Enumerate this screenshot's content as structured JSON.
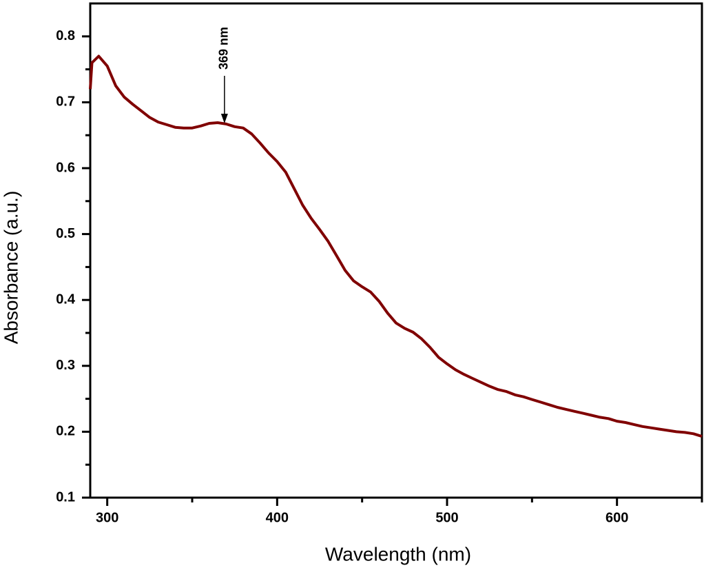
{
  "chart_data": {
    "type": "line",
    "x_label": "Wavelength (nm)",
    "y_label": "Absorbance (a.u.)",
    "x": [
      290,
      291,
      295,
      300,
      305,
      310,
      315,
      320,
      325,
      330,
      335,
      340,
      345,
      350,
      355,
      360,
      365,
      370,
      375,
      380,
      385,
      390,
      395,
      400,
      405,
      410,
      415,
      420,
      425,
      430,
      435,
      440,
      445,
      450,
      455,
      460,
      465,
      470,
      475,
      480,
      485,
      490,
      495,
      500,
      505,
      510,
      515,
      520,
      525,
      530,
      535,
      540,
      545,
      550,
      555,
      560,
      565,
      570,
      575,
      580,
      585,
      590,
      595,
      600,
      605,
      610,
      615,
      620,
      625,
      630,
      635,
      640,
      645,
      650
    ],
    "series": [
      {
        "color": "#800000",
        "values": [
          0.72,
          0.76,
          0.77,
          0.755,
          0.725,
          0.708,
          0.697,
          0.687,
          0.677,
          0.67,
          0.666,
          0.662,
          0.661,
          0.661,
          0.664,
          0.668,
          0.669,
          0.667,
          0.663,
          0.661,
          0.652,
          0.638,
          0.623,
          0.61,
          0.594,
          0.569,
          0.544,
          0.524,
          0.507,
          0.489,
          0.467,
          0.445,
          0.429,
          0.42,
          0.412,
          0.398,
          0.38,
          0.365,
          0.357,
          0.351,
          0.341,
          0.328,
          0.313,
          0.303,
          0.294,
          0.287,
          0.281,
          0.275,
          0.269,
          0.264,
          0.261,
          0.256,
          0.253,
          0.249,
          0.245,
          0.241,
          0.237,
          0.234,
          0.231,
          0.228,
          0.225,
          0.222,
          0.22,
          0.216,
          0.214,
          0.211,
          0.208,
          0.206,
          0.204,
          0.202,
          0.2,
          0.199,
          0.197,
          0.193
        ]
      }
    ],
    "xlim": [
      290,
      650
    ],
    "xticks": [
      300,
      400,
      500,
      600
    ],
    "xminorticks": [
      350,
      450,
      550,
      650
    ],
    "ylim": [
      0.1,
      0.85
    ],
    "yticks": [
      0.1,
      0.2,
      0.3,
      0.4,
      0.5,
      0.6,
      0.7,
      0.8
    ],
    "yminorticks": [
      0.15,
      0.25,
      0.35,
      0.45,
      0.55,
      0.65,
      0.75
    ],
    "annotation": {
      "text": "369 nm",
      "x": 369,
      "y": 0.668
    }
  }
}
